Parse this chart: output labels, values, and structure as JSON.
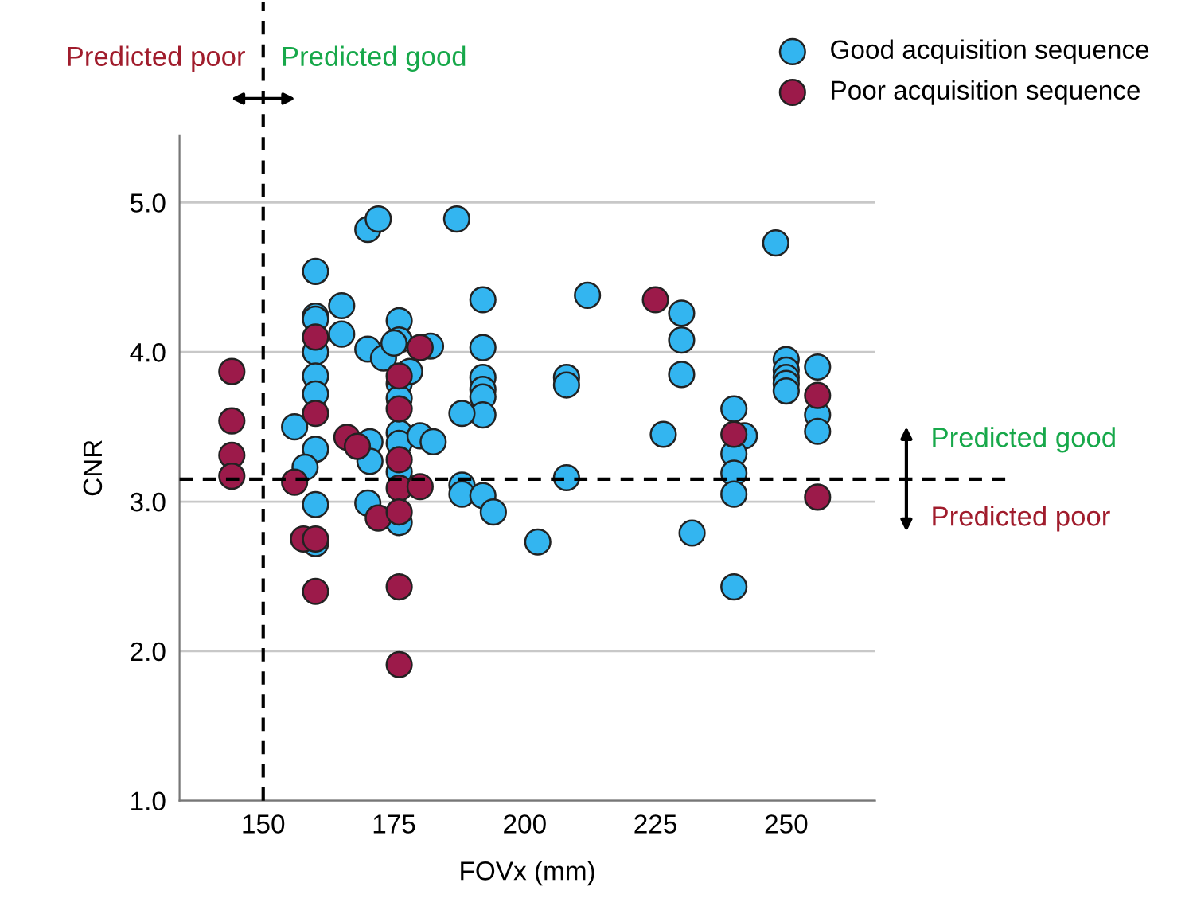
{
  "chart_data": {
    "type": "scatter",
    "xlabel": "FOVx (mm)",
    "ylabel": "CNR",
    "xlim": [
      134,
      267
    ],
    "xticks": [
      150,
      175,
      200,
      225,
      250
    ],
    "ylim": [
      1.0,
      5.45
    ],
    "yticks": [
      {
        "value": 1,
        "label": "1.0"
      },
      {
        "value": 2,
        "label": "2.0"
      },
      {
        "value": 3,
        "label": "3.0"
      },
      {
        "value": 4,
        "label": "4.0"
      },
      {
        "value": 5,
        "label": "5.0"
      }
    ],
    "grid": "y",
    "legend": "top right",
    "marker": "circle",
    "series": [
      {
        "name": "Good acquisition sequence",
        "color": "#33b5f0",
        "x": [
          156,
          160,
          160,
          160,
          160,
          160,
          160,
          160,
          158,
          160,
          160,
          165,
          165,
          170,
          172,
          187,
          192,
          192,
          192,
          192,
          192,
          192,
          188,
          176,
          176,
          176,
          176,
          176,
          176,
          176,
          170,
          173,
          175,
          178,
          182,
          180,
          182.5,
          170.4,
          170.4,
          170,
          176,
          188,
          188,
          192,
          194,
          212,
          230,
          230,
          230,
          208,
          208,
          208,
          202.5,
          226.5,
          232,
          240,
          242,
          240,
          240,
          240,
          240,
          248,
          250,
          250,
          250,
          250,
          250,
          256,
          256,
          256
        ],
        "values": [
          3.5,
          4.54,
          4.24,
          4.22,
          4.0,
          3.84,
          3.72,
          3.35,
          3.23,
          2.98,
          2.72,
          4.31,
          4.12,
          4.82,
          4.89,
          4.89,
          4.35,
          4.03,
          3.83,
          3.75,
          3.7,
          3.58,
          3.59,
          4.21,
          4.08,
          3.79,
          3.69,
          3.46,
          3.39,
          2.86,
          4.02,
          3.96,
          4.06,
          3.87,
          4.04,
          3.44,
          3.4,
          3.4,
          3.27,
          2.99,
          3.2,
          3.11,
          3.05,
          3.04,
          2.93,
          4.38,
          4.26,
          4.08,
          3.85,
          3.83,
          3.78,
          3.16,
          2.73,
          3.45,
          2.79,
          3.62,
          3.44,
          3.32,
          3.19,
          3.05,
          2.43,
          4.73,
          3.95,
          3.88,
          3.83,
          3.79,
          3.74,
          3.9,
          3.58,
          3.47
        ]
      },
      {
        "name": "Poor acquisition sequence",
        "color": "#9c1a4a",
        "x": [
          144,
          144,
          144,
          144,
          156,
          160,
          160,
          157.7,
          160,
          160,
          166,
          168,
          172,
          176,
          176,
          176,
          176,
          176,
          176,
          176,
          180,
          180,
          225,
          240,
          256,
          256
        ],
        "values": [
          3.87,
          3.54,
          3.31,
          3.17,
          3.13,
          4.1,
          3.59,
          2.75,
          2.75,
          2.4,
          3.43,
          3.37,
          2.89,
          3.84,
          3.62,
          3.28,
          3.09,
          2.93,
          2.43,
          1.91,
          4.03,
          3.1,
          4.35,
          3.45,
          3.71,
          3.03
        ]
      }
    ],
    "ref_lines": [
      {
        "axis": "x",
        "value": 150,
        "line_style": "dashed",
        "color": "#000000"
      },
      {
        "axis": "y",
        "value": 3.15,
        "line_style": "dashed",
        "color": "#000000"
      }
    ],
    "annotations": [
      "Predicted poor",
      "Predicted good",
      "Predicted good",
      "Predicted poor"
    ]
  }
}
